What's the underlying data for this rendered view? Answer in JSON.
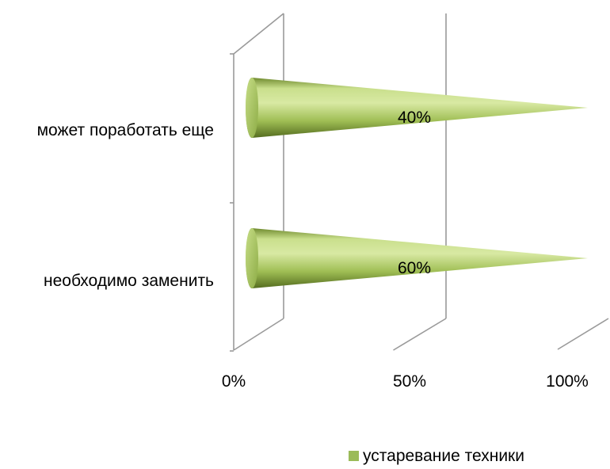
{
  "chart_data": {
    "type": "bar",
    "style": "3d-horizontal-cone-100pct-stacked",
    "categories": [
      "может поработать еще",
      "необходимо заменить"
    ],
    "series": [
      {
        "name": "устаревание техники",
        "values": [
          40,
          60
        ],
        "color": "#9bbb59"
      }
    ],
    "data_labels": [
      "40%",
      "60%"
    ],
    "x_ticks": [
      "0%",
      "50%",
      "100%"
    ],
    "xlim": [
      0,
      100
    ],
    "grid": true,
    "legend_position": "bottom-right",
    "title": "",
    "xlabel": "",
    "ylabel": ""
  }
}
